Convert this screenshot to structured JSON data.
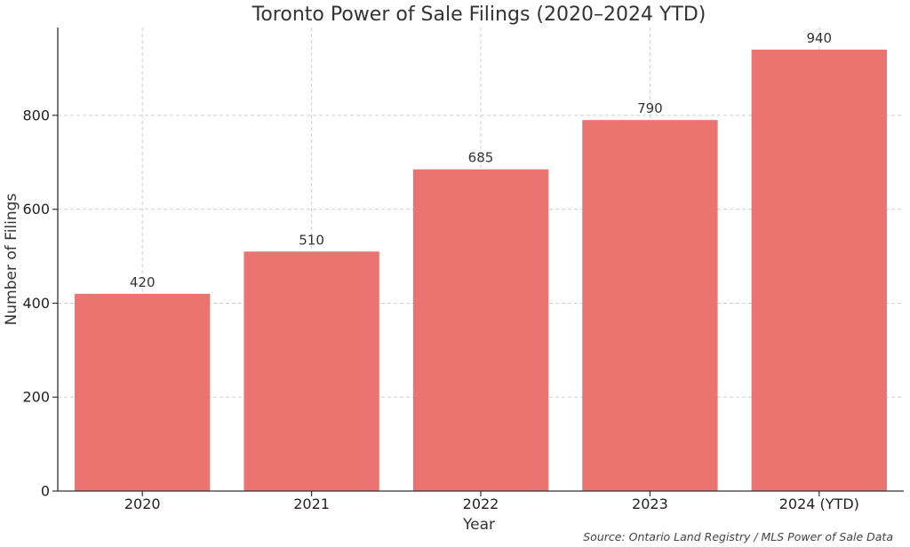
{
  "chart_data": {
    "type": "bar",
    "title": "Toronto Power of Sale Filings (2020–2024 YTD)",
    "xlabel": "Year",
    "ylabel": "Number of Filings",
    "categories": [
      "2020",
      "2021",
      "2022",
      "2023",
      "2024 (YTD)"
    ],
    "values": [
      420,
      510,
      685,
      790,
      940
    ],
    "data_labels": [
      "420",
      "510",
      "685",
      "790",
      "940"
    ],
    "y_ticks": [
      0,
      200,
      400,
      600,
      800
    ],
    "ylim": [
      0,
      987
    ],
    "grid": true,
    "bar_color": "#eb7470",
    "source": "Source: Ontario Land Registry / MLS Power of Sale Data"
  }
}
